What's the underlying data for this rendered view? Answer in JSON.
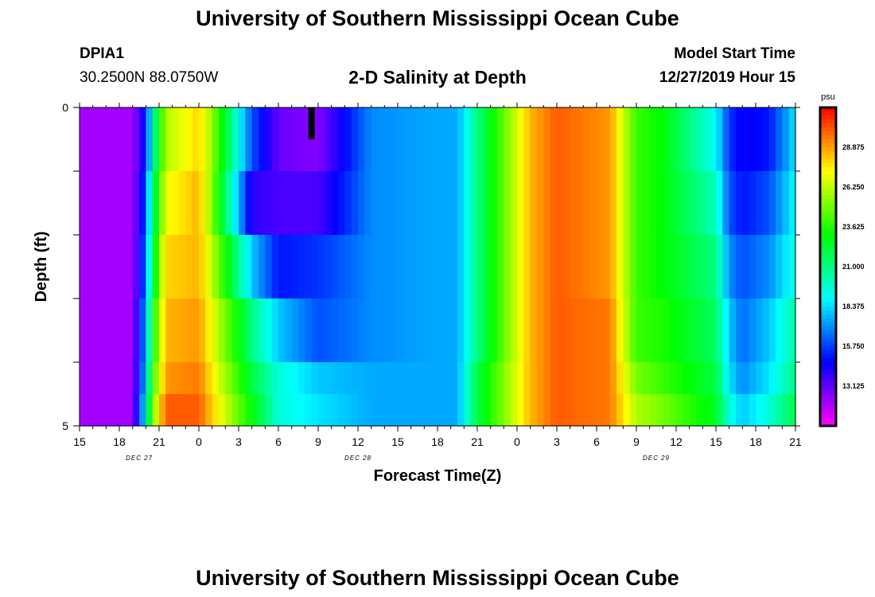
{
  "header": {
    "title": "University of Southern Mississippi Ocean Cube",
    "station_id": "DPIA1",
    "station_coords": "30.2500N 88.0750W",
    "model_start_label": "Model Start Time",
    "model_start_value": "12/27/2019 Hour 15"
  },
  "footer": {
    "title": "University of Southern Mississippi Ocean Cube"
  },
  "chart_data": {
    "type": "heatmap",
    "title": "2-D Salinity at Depth",
    "xlabel": "Forecast Time(Z)",
    "ylabel": "Depth (ft)",
    "ylim": [
      0,
      5
    ],
    "y_tick_labels": [
      "0",
      "5"
    ],
    "x_range_hours": [
      0,
      54
    ],
    "x_tick_labels": [
      "15",
      "18",
      "21",
      "0",
      "3",
      "6",
      "9",
      "12",
      "15",
      "18",
      "21",
      "0",
      "3",
      "6",
      "9",
      "12",
      "15",
      "18",
      "21"
    ],
    "date_labels": [
      {
        "text": "DEC 27",
        "hour": 4.5
      },
      {
        "text": "DEC 28",
        "hour": 21
      },
      {
        "text": "DEC 29",
        "hour": 43.5
      }
    ],
    "depth_layers": [
      "0-1 ft",
      "1-2 ft",
      "2-3 ft",
      "3-4 ft",
      "4-4.5 ft",
      "4.5-5 ft"
    ],
    "colorbar": {
      "unit": "psu",
      "min": 10.5,
      "max": 31.5,
      "tick_values": [
        13.125,
        15.75,
        18.375,
        21.0,
        23.625,
        26.25,
        28.875
      ],
      "tick_labels": [
        "13.125",
        "15.750",
        "18.375",
        "21.000",
        "23.625",
        "26.250",
        "28.875"
      ]
    },
    "missing_marker": {
      "hour": 17.5,
      "depth_range": [
        0,
        0.5
      ]
    },
    "time_keys": [
      0,
      4,
      5,
      5.5,
      6.5,
      9,
      9.5,
      13,
      15,
      18,
      22,
      27,
      28.5,
      30,
      34,
      36,
      40,
      42,
      44,
      48,
      49,
      50,
      52,
      54
    ],
    "layer_series": [
      {
        "name": "0-1 ft",
        "values": [
          12.0,
          12.0,
          15.0,
          20.0,
          26.0,
          28.0,
          27.0,
          16.0,
          13.0,
          12.5,
          17.0,
          17.5,
          17.5,
          21.0,
          28.5,
          30.0,
          29.0,
          24.0,
          23.0,
          19.0,
          15.5,
          14.5,
          15.0,
          18.5
        ]
      },
      {
        "name": "1-2 ft",
        "values": [
          12.0,
          12.0,
          16.0,
          21.0,
          27.0,
          28.5,
          27.0,
          14.0,
          13.5,
          13.5,
          17.0,
          17.5,
          17.5,
          21.0,
          28.5,
          30.0,
          29.0,
          24.0,
          23.0,
          20.0,
          16.0,
          15.0,
          16.0,
          19.0
        ]
      },
      {
        "name": "2-3 ft",
        "values": [
          12.0,
          12.0,
          16.5,
          22.0,
          28.0,
          28.5,
          27.5,
          18.0,
          15.0,
          15.5,
          17.0,
          17.5,
          17.5,
          21.0,
          28.5,
          30.0,
          29.0,
          24.0,
          23.0,
          21.0,
          17.0,
          16.0,
          17.0,
          19.5
        ]
      },
      {
        "name": "3-4 ft",
        "values": [
          12.0,
          12.0,
          17.5,
          23.0,
          28.5,
          29.0,
          28.0,
          21.0,
          18.0,
          16.0,
          17.0,
          17.5,
          17.5,
          21.0,
          28.5,
          30.0,
          29.5,
          24.0,
          23.5,
          21.5,
          18.0,
          16.5,
          18.0,
          20.5
        ]
      },
      {
        "name": "4-4.5 ft",
        "values": [
          12.0,
          12.0,
          18.0,
          24.0,
          29.0,
          29.5,
          28.5,
          22.0,
          19.5,
          18.0,
          17.5,
          17.5,
          17.5,
          22.0,
          28.5,
          30.0,
          29.5,
          25.0,
          24.0,
          22.0,
          18.5,
          17.0,
          18.5,
          21.0
        ]
      },
      {
        "name": "4.5-5 ft",
        "values": [
          12.0,
          12.0,
          19.0,
          25.0,
          30.0,
          30.0,
          29.0,
          23.0,
          19.5,
          18.5,
          17.5,
          17.5,
          17.5,
          22.0,
          28.5,
          30.0,
          29.5,
          26.0,
          25.0,
          22.5,
          19.5,
          18.0,
          19.5,
          22.0
        ]
      }
    ]
  }
}
